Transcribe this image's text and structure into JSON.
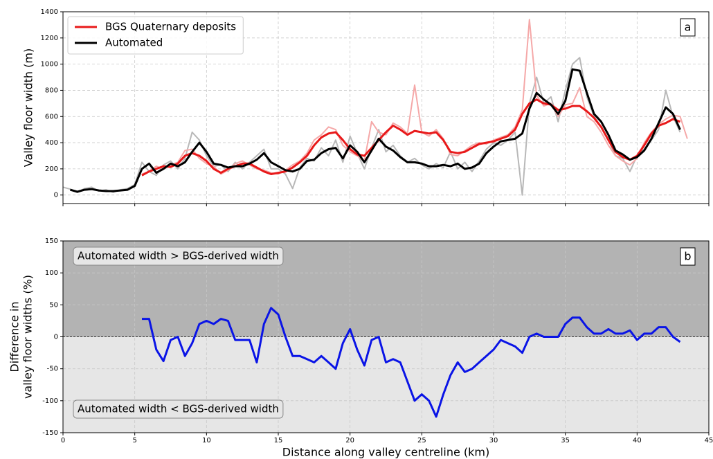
{
  "chart_data": [
    {
      "type": "line",
      "ylabel": "Valley floor width (m)",
      "panel_label": "a",
      "legend": "upper left",
      "grid": true,
      "show_xtick_labels": false,
      "xlim": [
        0,
        45
      ],
      "xticks": [
        0,
        5,
        10,
        15,
        20,
        25,
        30,
        35,
        40,
        45
      ],
      "ylim": [
        -65,
        1400
      ],
      "yticks": [
        0,
        200,
        400,
        600,
        800,
        1000,
        1200,
        1400
      ],
      "x": [
        0,
        0.5,
        1,
        1.5,
        2,
        2.5,
        3,
        3.5,
        4,
        4.5,
        5,
        5.5,
        6,
        6.5,
        7,
        7.5,
        8,
        8.5,
        9,
        9.5,
        10,
        10.5,
        11,
        11.5,
        12,
        12.5,
        13,
        13.5,
        14,
        14.5,
        15,
        15.5,
        16,
        16.5,
        17,
        17.5,
        18,
        18.5,
        19,
        19.5,
        20,
        20.5,
        21,
        21.5,
        22,
        22.5,
        23,
        23.5,
        24,
        24.5,
        25,
        25.5,
        26,
        26.5,
        27,
        27.5,
        28,
        28.5,
        29,
        29.5,
        30,
        30.5,
        31,
        31.5,
        32,
        32.5,
        33,
        33.5,
        34,
        34.5,
        35,
        35.5,
        36,
        36.5,
        37,
        37.5,
        38,
        38.5,
        39,
        39.5,
        40,
        40.5,
        41,
        41.5,
        42,
        42.5,
        43,
        43.5
      ],
      "series": [
        {
          "color": "#b8b8b8",
          "width": 2,
          "values": [
            60,
            45,
            20,
            50,
            60,
            30,
            40,
            20,
            40,
            50,
            80,
            250,
            180,
            150,
            230,
            260,
            200,
            280,
            480,
            420,
            300,
            220,
            230,
            180,
            250,
            200,
            250,
            300,
            350,
            200,
            200,
            160,
            50,
            210,
            280,
            260,
            360,
            300,
            420,
            250,
            450,
            320,
            200,
            360,
            500,
            330,
            380,
            300,
            250,
            280,
            230,
            200,
            240,
            210,
            330,
            200,
            250,
            180,
            260,
            350,
            400,
            380,
            420,
            480,
            0,
            700,
            900,
            700,
            750,
            560,
            800,
            1000,
            1050,
            750,
            600,
            520,
            420,
            300,
            280,
            180,
            300,
            350,
            420,
            500,
            800,
            600,
            480,
            null
          ]
        },
        {
          "color": "#f5a8a8",
          "width": 2,
          "values": [
            null,
            null,
            null,
            null,
            null,
            null,
            null,
            null,
            null,
            null,
            null,
            160,
            180,
            220,
            200,
            230,
            250,
            340,
            350,
            280,
            240,
            220,
            160,
            190,
            240,
            260,
            230,
            200,
            190,
            170,
            160,
            190,
            230,
            260,
            320,
            420,
            460,
            520,
            500,
            380,
            330,
            300,
            260,
            560,
            480,
            460,
            550,
            520,
            470,
            840,
            480,
            450,
            500,
            430,
            310,
            300,
            340,
            380,
            400,
            390,
            420,
            440,
            460,
            520,
            650,
            1340,
            760,
            680,
            700,
            600,
            690,
            700,
            820,
            600,
            560,
            480,
            380,
            300,
            260,
            230,
            280,
            400,
            480,
            540,
            580,
            610,
            600,
            430
          ]
        },
        {
          "name": "BGS Quaternary deposits",
          "color": "#e8191a",
          "width": 3,
          "values": [
            null,
            null,
            null,
            null,
            null,
            null,
            null,
            null,
            null,
            null,
            null,
            150,
            180,
            200,
            220,
            215,
            240,
            300,
            320,
            300,
            260,
            200,
            170,
            200,
            220,
            240,
            240,
            210,
            180,
            160,
            170,
            180,
            210,
            250,
            300,
            380,
            440,
            470,
            480,
            420,
            350,
            310,
            300,
            360,
            420,
            480,
            530,
            500,
            460,
            490,
            480,
            470,
            480,
            420,
            330,
            320,
            330,
            360,
            390,
            400,
            410,
            430,
            450,
            500,
            620,
            700,
            730,
            700,
            690,
            650,
            660,
            680,
            680,
            640,
            590,
            520,
            420,
            330,
            290,
            270,
            300,
            380,
            470,
            530,
            550,
            580,
            560,
            null
          ]
        },
        {
          "name": "Automated",
          "color": "#000000",
          "width": 3,
          "values": [
            null,
            40,
            25,
            40,
            45,
            35,
            30,
            30,
            35,
            40,
            70,
            200,
            240,
            170,
            200,
            240,
            220,
            250,
            330,
            400,
            330,
            240,
            230,
            210,
            220,
            220,
            240,
            270,
            320,
            250,
            220,
            190,
            180,
            200,
            260,
            270,
            320,
            350,
            360,
            280,
            380,
            330,
            250,
            340,
            430,
            370,
            340,
            290,
            250,
            250,
            240,
            220,
            220,
            230,
            220,
            240,
            200,
            210,
            240,
            320,
            370,
            410,
            420,
            430,
            470,
            660,
            780,
            730,
            690,
            620,
            720,
            960,
            950,
            780,
            620,
            560,
            460,
            340,
            310,
            270,
            290,
            340,
            430,
            550,
            670,
            620,
            500,
            null
          ]
        }
      ]
    },
    {
      "type": "line",
      "ylabel": [
        "Difference in",
        "valley floor widths (%)"
      ],
      "xlabel": "Distance along valley centreline (km)",
      "panel_label": "b",
      "grid": true,
      "show_xtick_labels": true,
      "background": {
        "above": "#b3b3b3",
        "below": "#e6e6e6"
      },
      "reference_line": 0,
      "annotations": [
        {
          "text": "Automated width > BGS-derived width",
          "position": "upper left"
        },
        {
          "text": "Automated width < BGS-derived width",
          "position": "lower left"
        }
      ],
      "xlim": [
        0,
        45
      ],
      "xticks": [
        0,
        5,
        10,
        15,
        20,
        25,
        30,
        35,
        40,
        45
      ],
      "ylim": [
        -150,
        150
      ],
      "yticks": [
        -150,
        -100,
        -50,
        0,
        50,
        100,
        150
      ],
      "x": [
        5.5,
        6,
        6.5,
        7,
        7.5,
        8,
        8.5,
        9,
        9.5,
        10,
        10.5,
        11,
        11.5,
        12,
        12.5,
        13,
        13.5,
        14,
        14.5,
        15,
        15.5,
        16,
        16.5,
        17,
        17.5,
        18,
        18.5,
        19,
        19.5,
        20,
        20.5,
        21,
        21.5,
        22,
        22.5,
        23,
        23.5,
        24,
        24.5,
        25,
        25.5,
        26,
        26.5,
        27,
        27.5,
        28,
        28.5,
        29,
        29.5,
        30,
        30.5,
        31,
        31.5,
        32,
        32.5,
        33,
        33.5,
        34,
        34.5,
        35,
        35.5,
        36,
        36.5,
        37,
        37.5,
        38,
        38.5,
        39,
        39.5,
        40,
        40.5,
        41,
        41.5,
        42,
        42.5,
        43
      ],
      "series": [
        {
          "color": "#0a14e6",
          "width": 3,
          "values": [
            28,
            28,
            -20,
            -38,
            -5,
            0,
            -30,
            -10,
            20,
            25,
            20,
            28,
            25,
            -5,
            -5,
            -5,
            -40,
            20,
            45,
            35,
            0,
            -30,
            -30,
            -35,
            -40,
            -30,
            -40,
            -50,
            -10,
            12,
            -20,
            -45,
            -5,
            0,
            -40,
            -35,
            -40,
            -70,
            -100,
            -90,
            -100,
            -125,
            -90,
            -60,
            -40,
            -55,
            -50,
            -40,
            -30,
            -20,
            -5,
            -10,
            -15,
            -25,
            0,
            5,
            0,
            0,
            0,
            20,
            30,
            30,
            15,
            5,
            5,
            12,
            5,
            5,
            10,
            -5,
            5,
            5,
            15,
            15,
            0,
            -8
          ]
        }
      ]
    }
  ]
}
